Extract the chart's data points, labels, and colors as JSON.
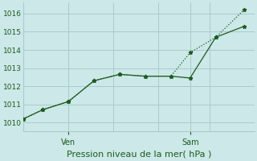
{
  "bg_color": "#cce8e8",
  "grid_color": "#aacccc",
  "line_color": "#1a5c1a",
  "marker_color": "#1a5c1a",
  "xlabel": "Pression niveau de la mer( hPa )",
  "ylim": [
    1009.5,
    1016.6
  ],
  "yticks": [
    1010,
    1011,
    1012,
    1013,
    1014,
    1015,
    1016
  ],
  "xlim": [
    0,
    18
  ],
  "series1_x": [
    0,
    1.5,
    3.5,
    5.5,
    7.5,
    9.5,
    11.5,
    13,
    15,
    17.2
  ],
  "series1_y": [
    1010.2,
    1010.7,
    1011.15,
    1012.3,
    1012.65,
    1012.55,
    1012.55,
    1012.45,
    1014.7,
    1015.3
  ],
  "series2_x": [
    0,
    1.5,
    3.5,
    5.5,
    7.5,
    9.5,
    11.5,
    13,
    15,
    17.2
  ],
  "series2_y": [
    1010.2,
    1010.7,
    1011.15,
    1012.3,
    1012.65,
    1012.55,
    1012.55,
    1013.85,
    1014.7,
    1016.2
  ],
  "ven_x": 3.5,
  "sam_x": 13.0,
  "xtick_labels": [
    "Ven",
    "Sam"
  ],
  "xtick_positions": [
    3.5,
    13.0
  ],
  "ytick_fontsize": 6.5,
  "xtick_fontsize": 7,
  "xlabel_fontsize": 8
}
